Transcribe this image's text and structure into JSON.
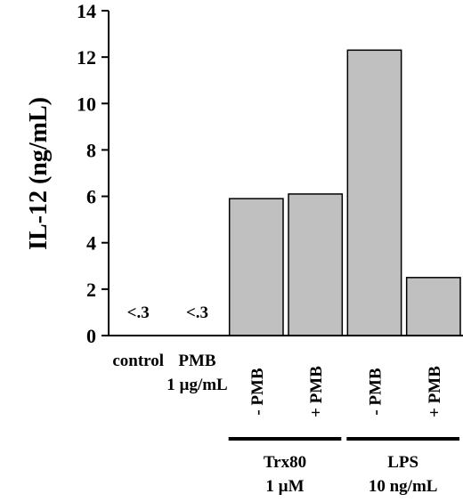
{
  "chart_data": {
    "type": "bar",
    "ylabel": "IL-12 (ng/mL)",
    "ylim": [
      0,
      14
    ],
    "yticks": [
      0,
      2,
      4,
      6,
      8,
      10,
      12,
      14
    ],
    "grid": false,
    "bar_color": "#c0c0c0",
    "categories": [
      "control",
      "PMB 1 µg/mL",
      "- PMB",
      "+ PMB",
      "- PMB",
      "+ PMB"
    ],
    "values": [
      null,
      null,
      5.9,
      6.1,
      12.3,
      2.5
    ],
    "value_labels": [
      "<.3",
      "<.3",
      "",
      "",
      "",
      ""
    ],
    "category_labels": [
      {
        "lines": [
          "control"
        ]
      },
      {
        "lines": [
          "PMB",
          "1 µg/mL"
        ]
      },
      {
        "lines": [
          "- PMB"
        ],
        "rotated": true
      },
      {
        "lines": [
          "+ PMB"
        ],
        "rotated": true
      },
      {
        "lines": [
          "- PMB"
        ],
        "rotated": true
      },
      {
        "lines": [
          "+ PMB"
        ],
        "rotated": true
      }
    ],
    "groups": [
      {
        "lines": [
          "Trx80",
          "1 µM"
        ],
        "from": 2,
        "to": 3
      },
      {
        "lines": [
          "LPS",
          "10 ng/mL"
        ],
        "from": 4,
        "to": 5
      }
    ]
  }
}
